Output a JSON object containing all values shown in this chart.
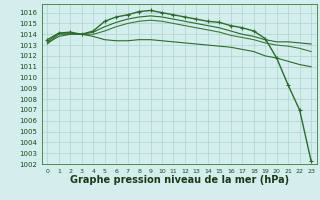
{
  "x": [
    0,
    1,
    2,
    3,
    4,
    5,
    6,
    7,
    8,
    9,
    10,
    11,
    12,
    13,
    14,
    15,
    16,
    17,
    18,
    19,
    20,
    21,
    22,
    23
  ],
  "lines": [
    {
      "y": [
        1013.5,
        1014.1,
        1014.2,
        1014.0,
        1014.3,
        1015.2,
        1015.6,
        1015.8,
        1016.1,
        1016.2,
        1016.0,
        1015.8,
        1015.6,
        1015.4,
        1015.2,
        1015.1,
        1014.8,
        1014.6,
        1014.3,
        1013.6,
        1011.8,
        1009.3,
        1007.0,
        1002.3
      ],
      "color": "#2d6a2d",
      "linewidth": 1.0,
      "marker": "+",
      "markersize": 3.5
    },
    {
      "y": [
        1013.3,
        1014.1,
        1014.1,
        1014.0,
        1014.2,
        1014.7,
        1015.1,
        1015.4,
        1015.6,
        1015.7,
        1015.6,
        1015.4,
        1015.2,
        1015.0,
        1014.8,
        1014.6,
        1014.3,
        1014.0,
        1013.8,
        1013.5,
        1013.3,
        1013.3,
        1013.2,
        1013.1
      ],
      "color": "#2d6a2d",
      "linewidth": 0.8,
      "marker": null,
      "markersize": 0
    },
    {
      "y": [
        1013.1,
        1014.0,
        1014.0,
        1014.0,
        1014.0,
        1014.3,
        1014.7,
        1015.0,
        1015.2,
        1015.3,
        1015.2,
        1015.0,
        1014.8,
        1014.6,
        1014.4,
        1014.2,
        1013.9,
        1013.7,
        1013.5,
        1013.2,
        1013.0,
        1012.9,
        1012.7,
        1012.4
      ],
      "color": "#3a7a3a",
      "linewidth": 0.8,
      "marker": null,
      "markersize": 0
    },
    {
      "y": [
        1013.2,
        1013.8,
        1014.0,
        1014.0,
        1013.8,
        1013.5,
        1013.4,
        1013.4,
        1013.5,
        1013.5,
        1013.4,
        1013.3,
        1013.2,
        1013.1,
        1013.0,
        1012.9,
        1012.8,
        1012.6,
        1012.4,
        1012.0,
        1011.8,
        1011.5,
        1011.2,
        1011.0
      ],
      "color": "#2d6a2d",
      "linewidth": 0.8,
      "marker": null,
      "markersize": 0
    }
  ],
  "xlabel": "Graphe pression niveau de la mer (hPa)",
  "ylim": [
    1002,
    1016.8
  ],
  "xlim": [
    -0.5,
    23.5
  ],
  "yticks": [
    1002,
    1003,
    1004,
    1005,
    1006,
    1007,
    1008,
    1009,
    1010,
    1011,
    1012,
    1013,
    1014,
    1015,
    1016
  ],
  "xticks": [
    0,
    1,
    2,
    3,
    4,
    5,
    6,
    7,
    8,
    9,
    10,
    11,
    12,
    13,
    14,
    15,
    16,
    17,
    18,
    19,
    20,
    21,
    22,
    23
  ],
  "bg_color": "#d4eeed",
  "grid_color": "#aed4d0",
  "axis_color": "#3a7a3a",
  "tick_label_color": "#1a4a1a",
  "xlabel_color": "#1a3a1a",
  "xlabel_fontsize": 7.0,
  "ytick_fontsize": 5.0,
  "xtick_fontsize": 4.5
}
